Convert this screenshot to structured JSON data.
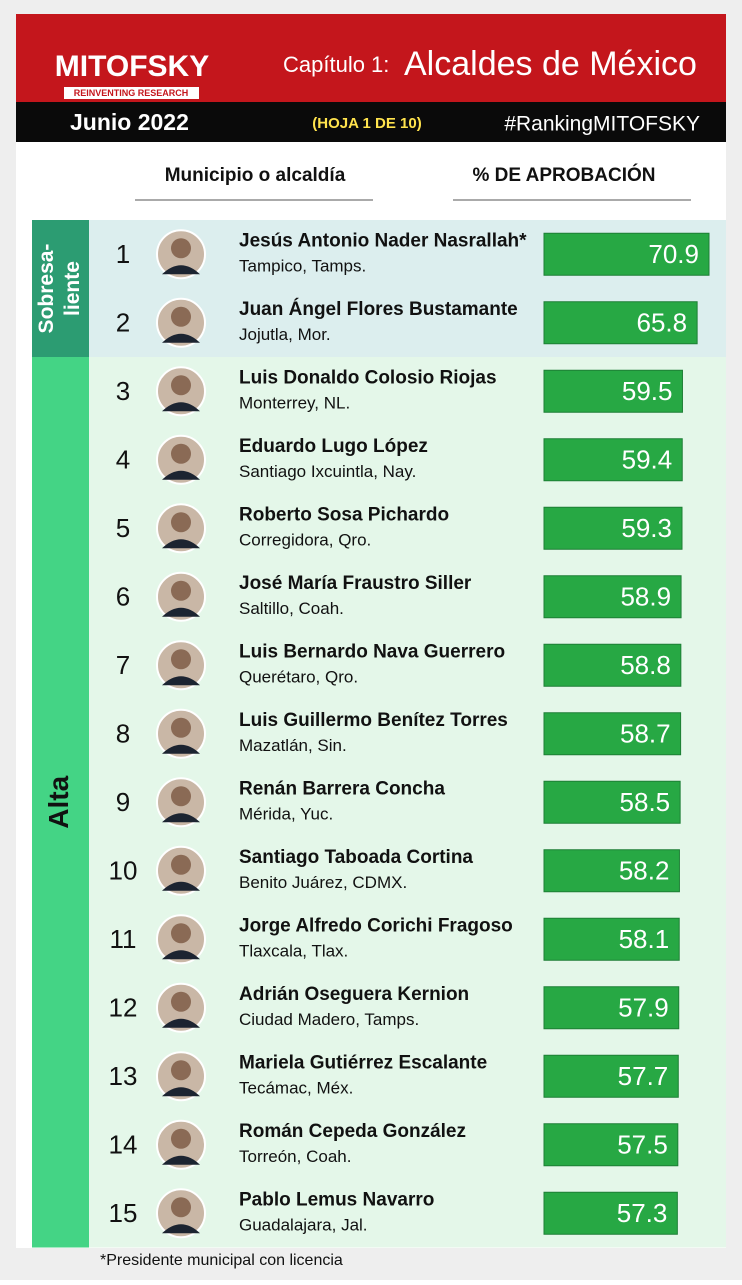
{
  "header": {
    "brand": "MITOFSKY",
    "tagline": "REINVENTING RESEARCH",
    "chapter": "Capítulo 1:",
    "title": "Alcaldes de México",
    "date": "Junio 2022",
    "sheet": "(HOJA 1 DE 10)",
    "hashtag": "#RankingMITOFSKY"
  },
  "columns": [
    "Municipio o alcaldía",
    "% DE APROBACIÓN"
  ],
  "groups": [
    {
      "label": [
        "Sobresa-",
        "liente"
      ]
    },
    {
      "label": [
        "Alta"
      ]
    }
  ],
  "chart_data": {
    "type": "bar",
    "orientation": "horizontal",
    "color": "#27a844",
    "ranks": [
      1,
      2,
      3,
      4,
      5,
      6,
      7,
      8,
      9,
      10,
      11,
      12,
      13,
      14,
      15
    ],
    "categories": [
      "Jesús Antonio Nader Nasrallah*",
      "Juan Ángel Flores Bustamante",
      "Luis Donaldo Colosio Riojas",
      "Eduardo Lugo López",
      "Roberto Sosa Pichardo",
      "José María Fraustro Siller",
      "Luis Bernardo Nava Guerrero",
      "Luis Guillermo Benítez Torres",
      "Renán Barrera Concha",
      "Santiago Taboada Cortina",
      "Jorge Alfredo Corichi Fragoso",
      "Adrián Oseguera Kernion",
      "Mariela Gutiérrez Escalante",
      "Román Cepeda González",
      "Pablo Lemus Navarro"
    ],
    "places": [
      "Tampico, Tamps.",
      "Jojutla, Mor.",
      "Monterrey, NL.",
      "Santiago Ixcuintla, Nay.",
      "Corregidora, Qro.",
      "Saltillo, Coah.",
      "Querétaro, Qro.",
      "Mazatlán, Sin.",
      "Mérida, Yuc.",
      "Benito Juárez, CDMX.",
      "Tlaxcala, Tlax.",
      "Ciudad Madero, Tamps.",
      "Tecámac, Méx.",
      "Torreón, Coah.",
      "Guadalajara, Jal."
    ],
    "values": [
      70.9,
      65.8,
      59.5,
      59.4,
      59.3,
      58.9,
      58.8,
      58.7,
      58.5,
      58.2,
      58.1,
      57.9,
      57.7,
      57.5,
      57.3
    ]
  },
  "footnote": "*Presidente municipal con licencia"
}
